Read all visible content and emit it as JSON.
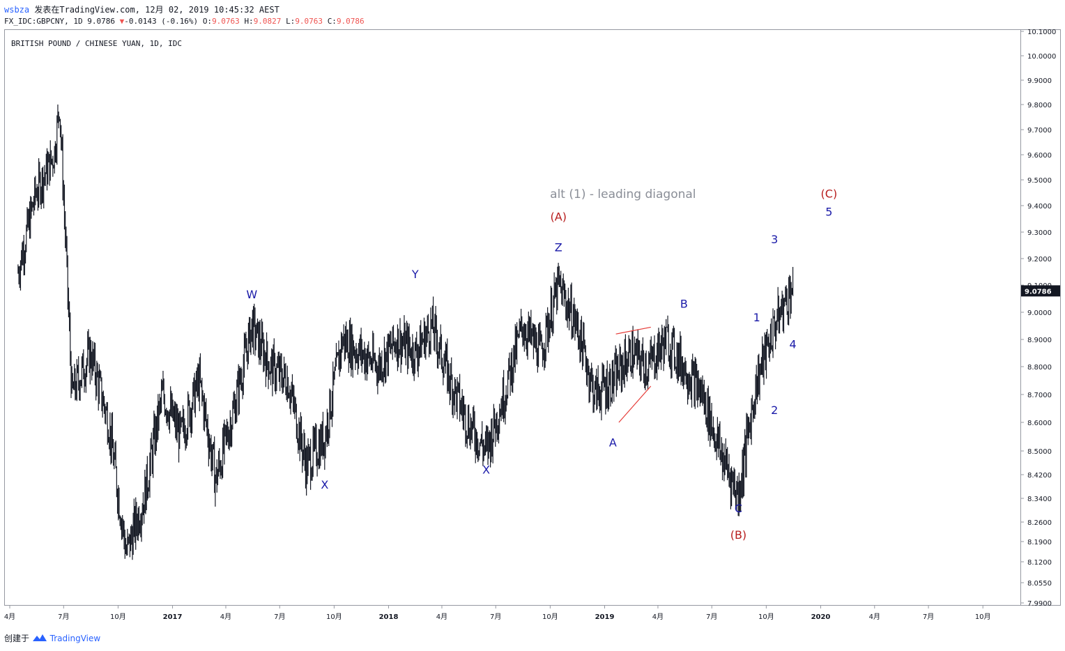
{
  "header": {
    "user": "wsbza",
    "published": "发表在TradingView.com, 12月 02, 2019 10:45:32 AEST",
    "ticker": "FX_IDC:GBPCNY, 1D",
    "last": "9.0786",
    "change_arrow": "▼",
    "change": "-0.0143 (-0.16%)",
    "o_label": "O:",
    "o_value": "9.0763",
    "h_label": "H:",
    "h_value": "9.0827",
    "l_label": "L:",
    "l_value": "9.0763",
    "c_label": "C:",
    "c_value": "9.0786"
  },
  "symbol_title": "BRITISH POUND / CHINESE YUAN, 1D, IDC",
  "footer": {
    "created_with": "创建于",
    "brand": "TradingView"
  },
  "colors": {
    "candle": "#131722",
    "wave_blue": "#1a1aa8",
    "wave_red": "#b71c1c",
    "annotation_gray": "#8a8e97",
    "trendline": "#e53935",
    "price_tag": "#131722",
    "accent": "#2962ff",
    "down": "#ef5350"
  },
  "chart_data": {
    "type": "candlestick",
    "title": "BRITISH POUND / CHINESE YUAN, 1D, IDC",
    "last_price": "9.0786",
    "ylim": [
      7.98,
      10.11
    ],
    "y_ticks": [
      "10.1000",
      "10.0000",
      "9.9000",
      "9.8000",
      "9.7000",
      "9.6000",
      "9.5000",
      "9.4000",
      "9.3000",
      "9.2000",
      "9.1000",
      "9.0000",
      "8.9000",
      "8.8000",
      "8.7000",
      "8.6000",
      "8.5000",
      "8.4200",
      "8.3400",
      "8.2600",
      "8.1900",
      "8.1200",
      "8.0550",
      "7.9900"
    ],
    "x_ticks": [
      "4月",
      "7月",
      "10月",
      "2017",
      "4月",
      "7月",
      "10月",
      "2018",
      "4月",
      "7月",
      "10月",
      "2019",
      "4月",
      "7月",
      "10月",
      "2020",
      "4月",
      "7月",
      "10月"
    ],
    "x_range": [
      "2016-04",
      "2020-12"
    ],
    "series": [
      {
        "x": [
          "2016-04",
          "2016-05",
          "2016-06",
          "2016-06-24",
          "2016-07",
          "2016-08",
          "2016-09",
          "2016-10",
          "2016-11",
          "2016-12",
          "2017-01",
          "2017-02",
          "2017-03",
          "2017-04",
          "2017-05",
          "2017-06",
          "2017-07",
          "2017-08",
          "2017-09",
          "2017-10",
          "2017-11",
          "2017-12",
          "2018-01",
          "2018-02",
          "2018-03",
          "2018-04",
          "2018-05",
          "2018-06",
          "2018-07",
          "2018-08",
          "2018-09",
          "2018-10",
          "2018-11",
          "2018-12",
          "2019-01",
          "2019-02",
          "2019-03",
          "2019-04",
          "2019-05",
          "2019-06",
          "2019-07",
          "2019-08",
          "2019-09",
          "2019-10",
          "2019-11"
        ],
        "y": [
          9.15,
          9.45,
          9.6,
          9.8,
          8.7,
          8.85,
          8.6,
          8.15,
          8.35,
          8.7,
          8.55,
          8.75,
          8.4,
          8.65,
          8.95,
          8.8,
          8.75,
          8.45,
          8.55,
          8.9,
          8.85,
          8.8,
          8.9,
          8.85,
          8.95,
          8.75,
          8.6,
          8.5,
          8.7,
          8.95,
          8.85,
          9.1,
          8.95,
          8.7,
          8.75,
          8.85,
          8.8,
          8.9,
          8.8,
          8.7,
          8.5,
          8.35,
          8.75,
          8.95,
          9.1
        ]
      }
    ],
    "wave_labels": [
      {
        "text": "W",
        "date": "2017-05",
        "price": 9.0
      },
      {
        "text": "X",
        "date": "2017-09",
        "price": 8.43
      },
      {
        "text": "Y",
        "date": "2018-02",
        "price": 9.08
      },
      {
        "text": "X",
        "date": "2018-06",
        "price": 8.48
      },
      {
        "text": "Z",
        "date": "2018-10",
        "price": 9.18
      },
      {
        "text": "(A)",
        "date": "2018-10",
        "price": 9.18
      },
      {
        "text": "A",
        "date": "2019-01",
        "price": 8.57
      },
      {
        "text": "B",
        "date": "2019-05",
        "price": 8.97
      },
      {
        "text": "C",
        "date": "2019-08",
        "price": 8.35
      },
      {
        "text": "(B)",
        "date": "2019-08",
        "price": 8.35
      },
      {
        "text": "1",
        "date": "2019-09",
        "price": 8.92
      },
      {
        "text": "2",
        "date": "2019-10",
        "price": 8.69
      },
      {
        "text": "3",
        "date": "2019-10",
        "price": 9.21
      },
      {
        "text": "4",
        "date": "2019-11",
        "price": 8.93
      },
      {
        "text": "(C)",
        "date": "2020-01",
        "price": 9.42
      },
      {
        "text": "5",
        "date": "2020-01",
        "price": 9.42
      }
    ],
    "annotations": [
      {
        "text": "alt (1) - leading diagonal"
      }
    ],
    "grid": false
  }
}
